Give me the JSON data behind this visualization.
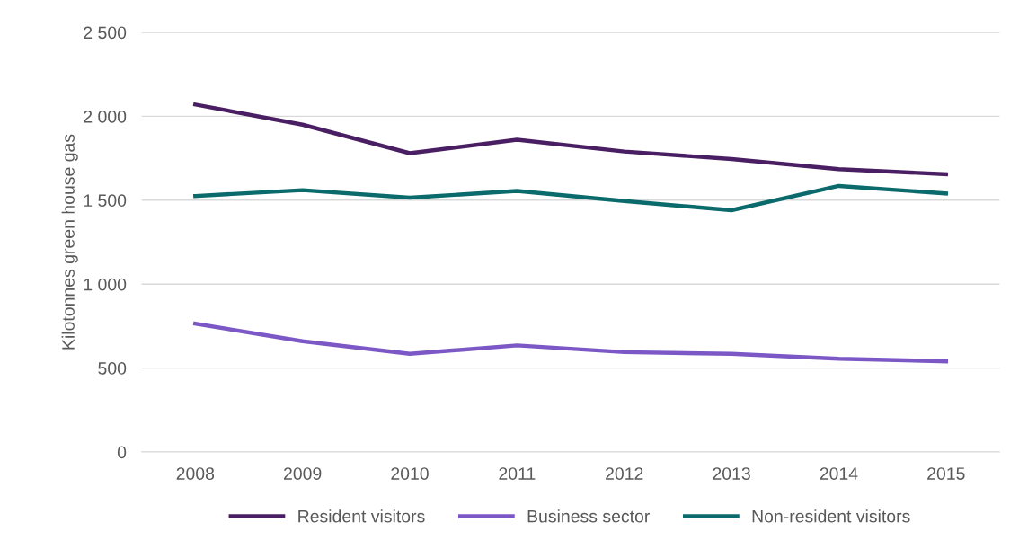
{
  "chart_data": {
    "type": "line",
    "ylabel": "Kilotonnes green house gas",
    "categories": [
      "2008",
      "2009",
      "2010",
      "2011",
      "2012",
      "2013",
      "2014",
      "2015"
    ],
    "series": [
      {
        "name": "Resident visitors",
        "color": "#4a1e62",
        "values": [
          2070,
          1950,
          1780,
          1860,
          1790,
          1745,
          1685,
          1655
        ]
      },
      {
        "name": "Business sector",
        "color": "#7b58c6",
        "values": [
          765,
          660,
          585,
          635,
          595,
          585,
          555,
          540
        ]
      },
      {
        "name": "Non-resident visitors",
        "color": "#0b6a6b",
        "values": [
          1525,
          1560,
          1515,
          1555,
          1495,
          1440,
          1585,
          1540
        ]
      }
    ],
    "ylim": [
      0,
      2500
    ],
    "yticks": [
      0,
      500,
      {
        "value": 1000,
        "label": "1 000"
      },
      {
        "value": 1500,
        "label": "1 500"
      },
      {
        "value": 2000,
        "label": "2 000"
      },
      {
        "value": 2500,
        "label": "2 500"
      }
    ],
    "grid": "y",
    "legend": "bottom",
    "marker": "none",
    "line_style": "solid"
  }
}
